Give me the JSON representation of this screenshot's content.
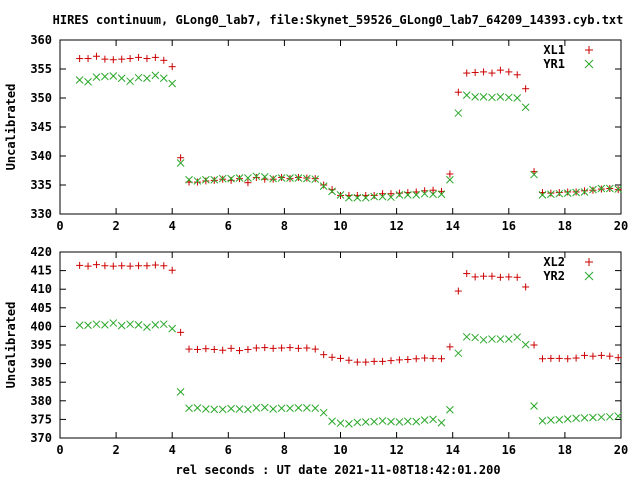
{
  "figure": {
    "title": "HIRES continuum, GLong0_lab7, file:Skynet_59526_GLong0_lab7_64209_14393.cyb.txt",
    "xlabel": "rel seconds : UT date 2021-11-08T18:42:01.200"
  },
  "chart_data": [
    {
      "type": "scatter",
      "ylabel": "Uncalibrated",
      "xlim": [
        0,
        20
      ],
      "ylim": [
        330,
        360
      ],
      "xticks": [
        0,
        2,
        4,
        6,
        8,
        10,
        12,
        14,
        16,
        18,
        20
      ],
      "yticks": [
        330,
        335,
        340,
        345,
        350,
        355,
        360
      ],
      "legend": "top-right",
      "grid": false,
      "series": [
        {
          "name": "XL1",
          "marker": "plus",
          "color": "#cc0000",
          "x": [
            0.7,
            1.0,
            1.3,
            1.6,
            1.9,
            2.2,
            2.5,
            2.8,
            3.1,
            3.4,
            3.7,
            4.0,
            4.3,
            4.6,
            4.9,
            5.2,
            5.5,
            5.8,
            6.1,
            6.4,
            6.7,
            7.0,
            7.3,
            7.6,
            7.9,
            8.2,
            8.5,
            8.8,
            9.1,
            9.4,
            9.7,
            10.0,
            10.3,
            10.6,
            10.9,
            11.2,
            11.5,
            11.8,
            12.1,
            12.4,
            12.7,
            13.0,
            13.3,
            13.6,
            13.9,
            14.2,
            14.5,
            14.8,
            15.1,
            15.4,
            15.7,
            16.0,
            16.3,
            16.6,
            16.9,
            17.2,
            17.5,
            17.8,
            18.1,
            18.4,
            18.7,
            19.0,
            19.3,
            19.6,
            19.9
          ],
          "y": [
            356.8,
            356.8,
            357.2,
            356.7,
            356.6,
            356.7,
            356.8,
            357.0,
            356.8,
            357.0,
            356.5,
            355.4,
            339.7,
            335.5,
            335.5,
            335.7,
            335.8,
            336.0,
            335.8,
            336.1,
            335.4,
            336.3,
            336.0,
            336.0,
            336.3,
            336.1,
            336.3,
            336.2,
            336.1,
            335.0,
            334.2,
            333.2,
            333.2,
            333.2,
            333.2,
            333.2,
            333.5,
            333.5,
            333.6,
            333.7,
            333.8,
            334.0,
            334.1,
            333.9,
            336.9,
            351.0,
            354.3,
            354.4,
            354.5,
            354.3,
            354.8,
            354.5,
            354.0,
            351.6,
            337.3,
            333.7,
            333.6,
            333.7,
            333.8,
            333.8,
            334.0,
            334.1,
            334.3,
            334.4,
            334.2
          ]
        },
        {
          "name": "YR1",
          "marker": "cross",
          "color": "#2aa82a",
          "x": [
            0.7,
            1.0,
            1.3,
            1.6,
            1.9,
            2.2,
            2.5,
            2.8,
            3.1,
            3.4,
            3.7,
            4.0,
            4.3,
            4.6,
            4.9,
            5.2,
            5.5,
            5.8,
            6.1,
            6.4,
            6.7,
            7.0,
            7.3,
            7.6,
            7.9,
            8.2,
            8.5,
            8.8,
            9.1,
            9.4,
            9.7,
            10.0,
            10.3,
            10.6,
            10.9,
            11.2,
            11.5,
            11.8,
            12.1,
            12.4,
            12.7,
            13.0,
            13.3,
            13.6,
            13.9,
            14.2,
            14.5,
            14.8,
            15.1,
            15.4,
            15.7,
            16.0,
            16.3,
            16.6,
            16.9,
            17.2,
            17.5,
            17.8,
            18.1,
            18.4,
            18.7,
            19.0,
            19.3,
            19.6,
            19.9
          ],
          "y": [
            353.1,
            352.8,
            353.6,
            353.7,
            353.8,
            353.4,
            352.9,
            353.5,
            353.4,
            353.9,
            353.4,
            352.5,
            338.8,
            335.9,
            335.7,
            335.9,
            335.9,
            336.1,
            336.1,
            336.2,
            336.2,
            336.5,
            336.4,
            336.1,
            336.2,
            336.2,
            336.2,
            336.1,
            336.0,
            334.8,
            333.9,
            333.3,
            332.8,
            332.8,
            332.8,
            333.0,
            333.0,
            332.9,
            333.3,
            333.3,
            333.3,
            333.5,
            333.4,
            333.4,
            335.9,
            347.4,
            350.5,
            350.2,
            350.2,
            350.1,
            350.2,
            350.1,
            350.0,
            348.4,
            336.8,
            333.3,
            333.4,
            333.5,
            333.6,
            333.7,
            333.8,
            334.2,
            334.4,
            334.4,
            334.3
          ]
        }
      ]
    },
    {
      "type": "scatter",
      "ylabel": "Uncalibrated",
      "xlim": [
        0,
        20
      ],
      "ylim": [
        370,
        420
      ],
      "xticks": [
        0,
        2,
        4,
        6,
        8,
        10,
        12,
        14,
        16,
        18,
        20
      ],
      "yticks": [
        370,
        375,
        380,
        385,
        390,
        395,
        400,
        405,
        410,
        415,
        420
      ],
      "legend": "top-right",
      "grid": false,
      "series": [
        {
          "name": "XL2",
          "marker": "plus",
          "color": "#cc0000",
          "x": [
            0.7,
            1.0,
            1.3,
            1.6,
            1.9,
            2.2,
            2.5,
            2.8,
            3.1,
            3.4,
            3.7,
            4.0,
            4.3,
            4.6,
            4.9,
            5.2,
            5.5,
            5.8,
            6.1,
            6.4,
            6.7,
            7.0,
            7.3,
            7.6,
            7.9,
            8.2,
            8.5,
            8.8,
            9.1,
            9.4,
            9.7,
            10.0,
            10.3,
            10.6,
            10.9,
            11.2,
            11.5,
            11.8,
            12.1,
            12.4,
            12.7,
            13.0,
            13.3,
            13.6,
            13.9,
            14.2,
            14.5,
            14.8,
            15.1,
            15.4,
            15.7,
            16.0,
            16.3,
            16.6,
            16.9,
            17.2,
            17.5,
            17.8,
            18.1,
            18.4,
            18.7,
            19.0,
            19.3,
            19.6,
            19.9
          ],
          "y": [
            416.4,
            416.2,
            416.6,
            416.3,
            416.2,
            416.3,
            416.2,
            416.3,
            416.3,
            416.5,
            416.3,
            415.1,
            398.4,
            393.9,
            393.8,
            394.0,
            393.8,
            393.6,
            394.1,
            393.5,
            393.8,
            394.2,
            394.3,
            394.1,
            394.2,
            394.3,
            394.1,
            394.2,
            393.9,
            392.4,
            391.7,
            391.4,
            390.9,
            390.4,
            390.4,
            390.6,
            390.6,
            390.8,
            391.0,
            391.1,
            391.3,
            391.5,
            391.4,
            391.3,
            394.5,
            409.5,
            414.2,
            413.3,
            413.5,
            413.5,
            413.2,
            413.3,
            413.2,
            410.6,
            395.0,
            391.3,
            391.4,
            391.4,
            391.3,
            391.5,
            392.2,
            392.0,
            392.2,
            392.0,
            391.6
          ]
        },
        {
          "name": "YR2",
          "marker": "cross",
          "color": "#2aa82a",
          "x": [
            0.7,
            1.0,
            1.3,
            1.6,
            1.9,
            2.2,
            2.5,
            2.8,
            3.1,
            3.4,
            3.7,
            4.0,
            4.3,
            4.6,
            4.9,
            5.2,
            5.5,
            5.8,
            6.1,
            6.4,
            6.7,
            7.0,
            7.3,
            7.6,
            7.9,
            8.2,
            8.5,
            8.8,
            9.1,
            9.4,
            9.7,
            10.0,
            10.3,
            10.6,
            10.9,
            11.2,
            11.5,
            11.8,
            12.1,
            12.4,
            12.7,
            13.0,
            13.3,
            13.6,
            13.9,
            14.2,
            14.5,
            14.8,
            15.1,
            15.4,
            15.7,
            16.0,
            16.3,
            16.6,
            16.9,
            17.2,
            17.5,
            17.8,
            18.1,
            18.4,
            18.7,
            19.0,
            19.3,
            19.6,
            19.9
          ],
          "y": [
            400.3,
            400.3,
            400.6,
            400.4,
            400.9,
            400.2,
            400.6,
            400.4,
            399.8,
            400.4,
            400.6,
            399.4,
            382.4,
            378.0,
            378.1,
            377.8,
            377.7,
            377.7,
            377.9,
            377.8,
            377.7,
            378.1,
            378.2,
            377.8,
            378.0,
            378.0,
            378.1,
            378.1,
            378.0,
            376.8,
            374.5,
            374.0,
            373.8,
            374.2,
            374.3,
            374.4,
            374.6,
            374.4,
            374.3,
            374.5,
            374.4,
            374.8,
            375.0,
            374.1,
            377.6,
            392.8,
            397.2,
            397.0,
            396.4,
            396.6,
            396.6,
            396.6,
            397.1,
            395.1,
            378.6,
            374.6,
            374.8,
            374.9,
            375.1,
            375.3,
            375.4,
            375.5,
            375.6,
            375.7,
            375.9
          ]
        }
      ]
    }
  ]
}
